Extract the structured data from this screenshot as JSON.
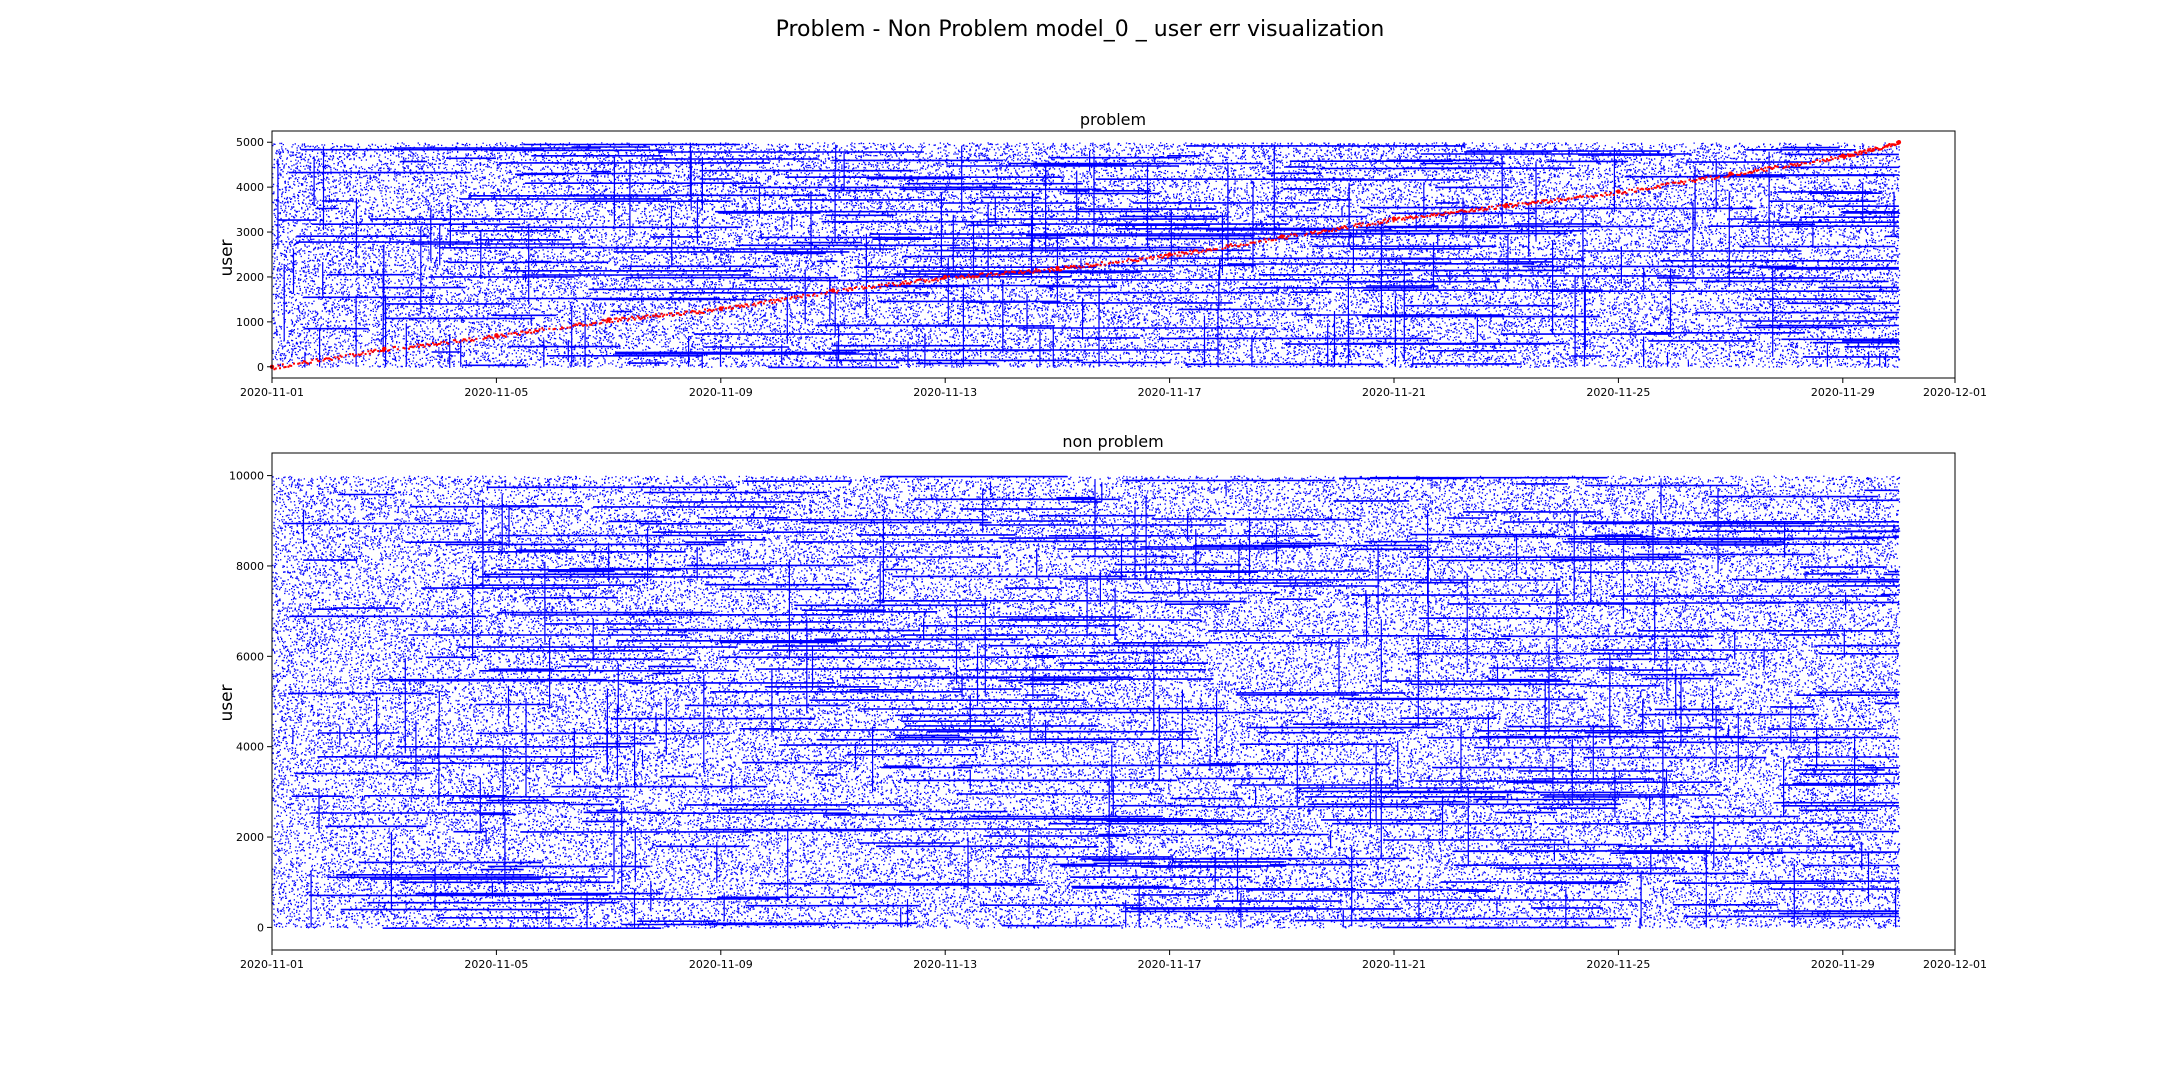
{
  "figure": {
    "suptitle": "Problem - Non Problem model_0 _ user err visualization"
  },
  "chart_data": [
    {
      "type": "scatter",
      "title": "problem",
      "xlabel": "",
      "ylabel": "user",
      "x_ticks": [
        "2020-11-01",
        "2020-11-05",
        "2020-11-09",
        "2020-11-13",
        "2020-11-17",
        "2020-11-21",
        "2020-11-25",
        "2020-11-29",
        "2020-12-01"
      ],
      "y_ticks": [
        0,
        1000,
        2000,
        3000,
        4000,
        5000
      ],
      "xlim": [
        "2020-11-01",
        "2020-12-01"
      ],
      "ylim": [
        -250,
        5250
      ],
      "series": [
        {
          "color": "#0000ff",
          "description_points": "dense per-minute error events across all users 0-5000 over the whole month",
          "x_range": [
            "2020-11-01",
            "2020-11-30"
          ],
          "y_range": [
            0,
            5000
          ]
        },
        {
          "color": "#ff0000",
          "x": [
            "2020-11-01",
            "2020-11-03",
            "2020-11-05",
            "2020-11-07",
            "2020-11-09",
            "2020-11-11",
            "2020-11-13",
            "2020-11-15",
            "2020-11-17",
            "2020-11-19",
            "2020-11-21",
            "2020-11-23",
            "2020-11-25",
            "2020-11-27",
            "2020-11-29",
            "2020-11-30"
          ],
          "y": [
            0,
            400,
            700,
            1050,
            1300,
            1700,
            2000,
            2200,
            2500,
            2900,
            3300,
            3600,
            3900,
            4300,
            4700,
            5000
          ]
        }
      ],
      "grid": false
    },
    {
      "type": "scatter",
      "title": "non problem",
      "xlabel": "",
      "ylabel": "user",
      "x_ticks": [
        "2020-11-01",
        "2020-11-05",
        "2020-11-09",
        "2020-11-13",
        "2020-11-17",
        "2020-11-21",
        "2020-11-25",
        "2020-11-29",
        "2020-12-01"
      ],
      "y_ticks": [
        0,
        2000,
        4000,
        6000,
        8000,
        10000
      ],
      "xlim": [
        "2020-11-01",
        "2020-12-01"
      ],
      "ylim": [
        -500,
        10500
      ],
      "series": [
        {
          "color": "#0000ff",
          "x_range": [
            "2020-11-01",
            "2020-11-30"
          ],
          "y_range": [
            0,
            10000
          ]
        }
      ],
      "grid": false
    }
  ]
}
